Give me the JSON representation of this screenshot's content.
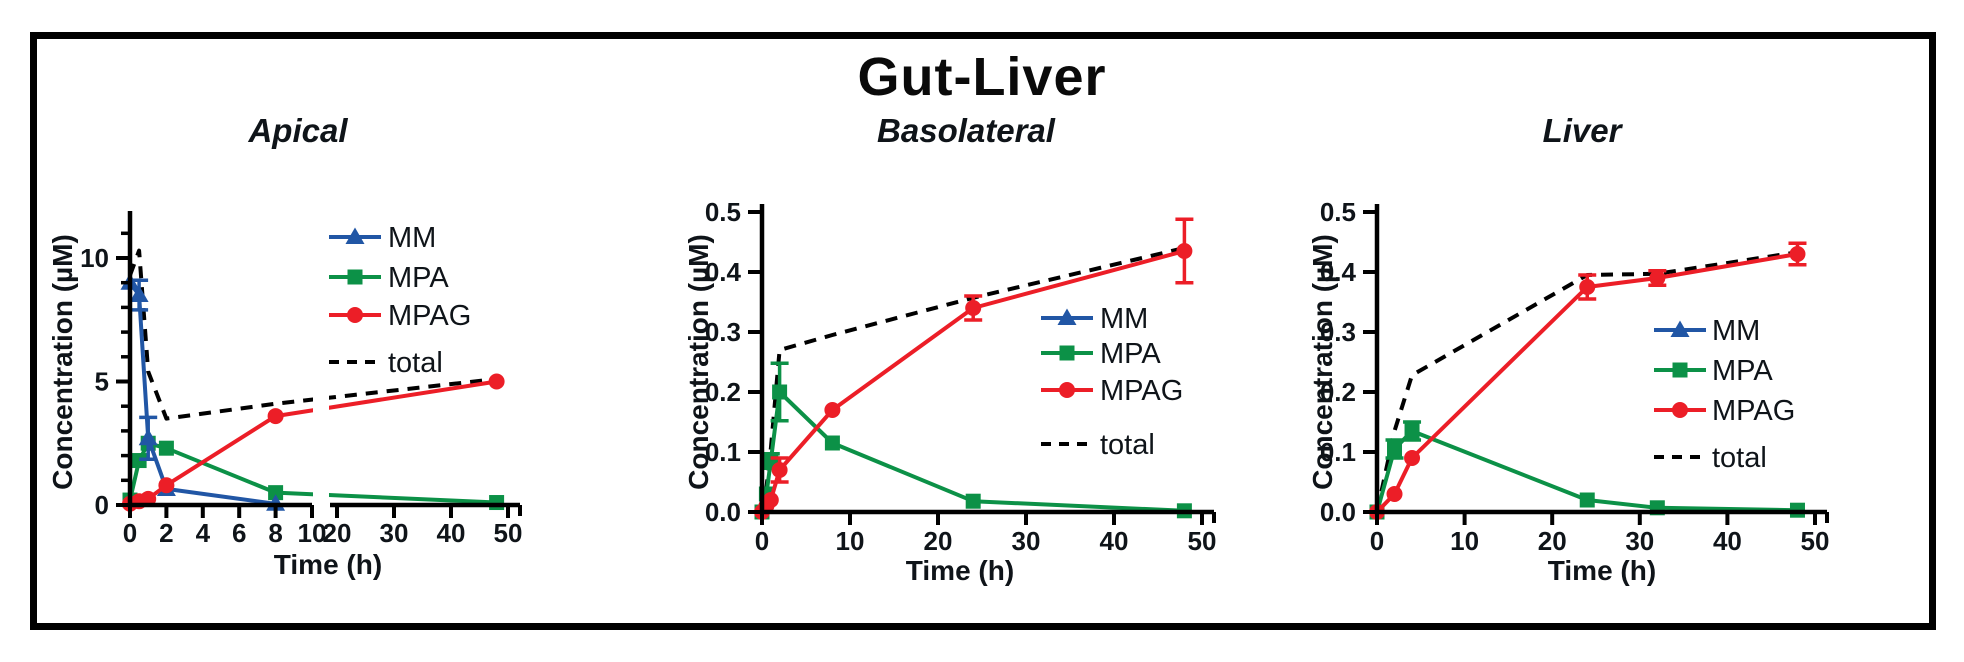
{
  "figure": {
    "title": "Gut-Liver"
  },
  "colors": {
    "mm": "#2156A5",
    "mpa": "#0C9147",
    "mpag": "#EC1E27",
    "total": "#000000",
    "axis": "#000000",
    "text": "#0f1419",
    "background": "#FFFFFF"
  },
  "legend": {
    "entries": [
      {
        "key": "mm",
        "label": "MM",
        "marker": "triangle"
      },
      {
        "key": "mpa",
        "label": "MPA",
        "marker": "square"
      },
      {
        "key": "mpag",
        "label": "MPAG",
        "marker": "circle"
      },
      {
        "key": "total",
        "label": "total",
        "marker": "dash"
      }
    ]
  },
  "chart_data": [
    {
      "id": "apical",
      "type": "line",
      "title": "Apical",
      "xlabel": "Time (h)",
      "ylabel": "Concentration (µM)",
      "ylim": [
        0,
        11.9
      ],
      "yticks": [
        0,
        5,
        10
      ],
      "ytick_labels": [
        "0",
        "5",
        "10"
      ],
      "y_minor_step": 1,
      "grid": false,
      "legend_position": "inside-upper-right",
      "x_axis": {
        "broken": true,
        "segments": [
          {
            "range": [
              0,
              10
            ],
            "ticks": [
              0,
              2,
              4,
              6,
              8,
              10
            ]
          },
          {
            "range": [
              20,
              50
            ],
            "ticks": [
              20,
              30,
              40,
              50
            ]
          }
        ]
      },
      "series": [
        {
          "key": "mm",
          "name": "MM",
          "x": [
            0,
            0.5,
            1,
            2,
            8
          ],
          "y": [
            9.0,
            8.5,
            2.7,
            0.65,
            0.05
          ],
          "err": [
            0,
            0.6,
            0.85,
            0,
            0
          ]
        },
        {
          "key": "mpa",
          "name": "MPA",
          "x": [
            0,
            0.5,
            1,
            2,
            8,
            48
          ],
          "y": [
            0.2,
            1.8,
            2.5,
            2.3,
            0.5,
            0.1
          ],
          "err": [
            0,
            0,
            0,
            0,
            0,
            0
          ]
        },
        {
          "key": "mpag",
          "name": "MPAG",
          "x": [
            0,
            0.5,
            1,
            2,
            8,
            48
          ],
          "y": [
            0.05,
            0.15,
            0.25,
            0.8,
            3.6,
            5.0
          ],
          "err": [
            0,
            0,
            0,
            0,
            0,
            0
          ]
        },
        {
          "key": "total",
          "name": "total",
          "style": "dashed",
          "x": [
            0,
            0.5,
            1,
            2,
            8,
            48
          ],
          "y": [
            9.3,
            10.3,
            5.4,
            3.5,
            4.1,
            5.1
          ],
          "err": [
            0,
            0,
            0,
            0,
            0,
            0
          ]
        }
      ]
    },
    {
      "id": "basolateral",
      "type": "line",
      "title": "Basolateral",
      "xlabel": "Time (h)",
      "ylabel": "Concentration (µM)",
      "ylim": [
        0,
        0.5
      ],
      "yticks": [
        0,
        0.1,
        0.2,
        0.3,
        0.4,
        0.5
      ],
      "ytick_labels": [
        "0.0",
        "0.1",
        "0.2",
        "0.3",
        "0.4",
        "0.5"
      ],
      "y_minor_step": 0,
      "grid": false,
      "legend_position": "inside-right",
      "x_axis": {
        "broken": false,
        "segments": [
          {
            "range": [
              0,
              50
            ],
            "ticks": [
              0,
              10,
              20,
              30,
              40,
              50
            ]
          }
        ]
      },
      "series": [
        {
          "key": "mm",
          "name": "MM",
          "x": [],
          "y": [],
          "err": []
        },
        {
          "key": "mpa",
          "name": "MPA",
          "x": [
            0,
            0.5,
            1,
            2,
            8,
            24,
            48
          ],
          "y": [
            0,
            0.03,
            0.085,
            0.2,
            0.115,
            0.018,
            0.002
          ],
          "err": [
            0,
            0,
            0.012,
            0.048,
            0,
            0,
            0
          ]
        },
        {
          "key": "mpag",
          "name": "MPAG",
          "x": [
            0,
            0.5,
            1,
            2,
            8,
            24,
            48
          ],
          "y": [
            0,
            0.01,
            0.02,
            0.07,
            0.17,
            0.34,
            0.435
          ],
          "err": [
            0,
            0,
            0,
            0.02,
            0,
            0.02,
            0.053
          ]
        },
        {
          "key": "total",
          "name": "total",
          "style": "dashed",
          "x": [
            0,
            0.5,
            1,
            2,
            8,
            24,
            48
          ],
          "y": [
            0,
            0.04,
            0.105,
            0.27,
            0.295,
            0.357,
            0.44
          ],
          "err": [
            0,
            0,
            0,
            0,
            0,
            0,
            0
          ]
        }
      ]
    },
    {
      "id": "liver",
      "type": "line",
      "title": "Liver",
      "xlabel": "Time (h)",
      "ylabel": "Concentration (µM)",
      "ylim": [
        0,
        0.5
      ],
      "yticks": [
        0,
        0.1,
        0.2,
        0.3,
        0.4,
        0.5
      ],
      "ytick_labels": [
        "0.0",
        "0.1",
        "0.2",
        "0.3",
        "0.4",
        "0.5"
      ],
      "y_minor_step": 0,
      "grid": false,
      "legend_position": "inside-right",
      "x_axis": {
        "broken": false,
        "segments": [
          {
            "range": [
              0,
              50
            ],
            "ticks": [
              0,
              10,
              20,
              30,
              40,
              50
            ]
          }
        ]
      },
      "series": [
        {
          "key": "mm",
          "name": "MM",
          "x": [],
          "y": [],
          "err": []
        },
        {
          "key": "mpa",
          "name": "MPA",
          "x": [
            0,
            2,
            4,
            24,
            32,
            48
          ],
          "y": [
            0,
            0.105,
            0.135,
            0.02,
            0.007,
            0.003
          ],
          "err": [
            0,
            0.015,
            0.015,
            0,
            0,
            0
          ]
        },
        {
          "key": "mpag",
          "name": "MPAG",
          "x": [
            0,
            2,
            4,
            24,
            32,
            48
          ],
          "y": [
            0,
            0.03,
            0.09,
            0.375,
            0.39,
            0.43
          ],
          "err": [
            0,
            0,
            0,
            0.02,
            0.012,
            0.018
          ]
        },
        {
          "key": "total",
          "name": "total",
          "style": "dashed",
          "x": [
            0,
            2,
            4,
            24,
            32,
            48
          ],
          "y": [
            0,
            0.135,
            0.228,
            0.395,
            0.397,
            0.433
          ],
          "err": [
            0,
            0,
            0,
            0,
            0,
            0
          ]
        }
      ]
    }
  ]
}
